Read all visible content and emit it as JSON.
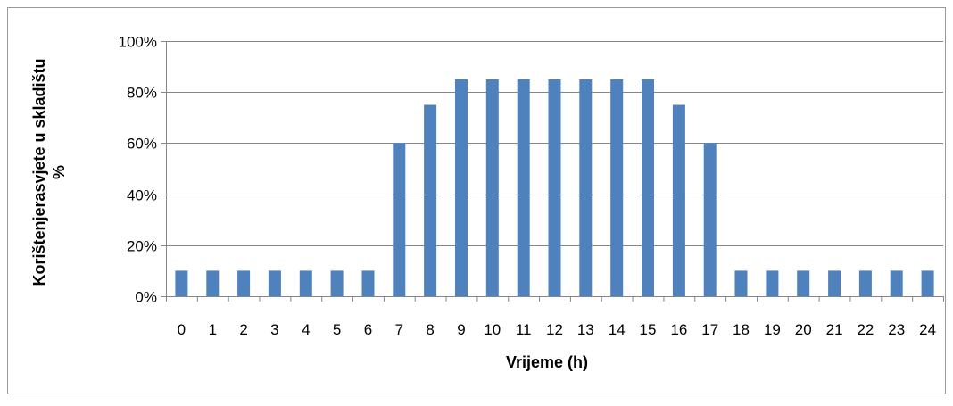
{
  "chart_data": {
    "type": "bar",
    "categories": [
      "0",
      "1",
      "2",
      "3",
      "4",
      "5",
      "6",
      "7",
      "8",
      "9",
      "10",
      "11",
      "12",
      "13",
      "14",
      "15",
      "16",
      "17",
      "18",
      "19",
      "20",
      "21",
      "22",
      "23",
      "24"
    ],
    "values": [
      10,
      10,
      10,
      10,
      10,
      10,
      10,
      60,
      75,
      85,
      85,
      85,
      85,
      85,
      85,
      85,
      75,
      60,
      10,
      10,
      10,
      10,
      10,
      10,
      10
    ],
    "xlabel": "Vrijeme (h)",
    "ylabel_lines": [
      "Korištenjerasvjete u skladištu",
      "%"
    ],
    "ylim": [
      0,
      100
    ],
    "yticks": [
      0,
      20,
      40,
      60,
      80,
      100
    ],
    "ytick_suffix": "%",
    "grid": true,
    "legend": "none",
    "bar_color": "#4f81bd",
    "grid_color": "#868686"
  }
}
